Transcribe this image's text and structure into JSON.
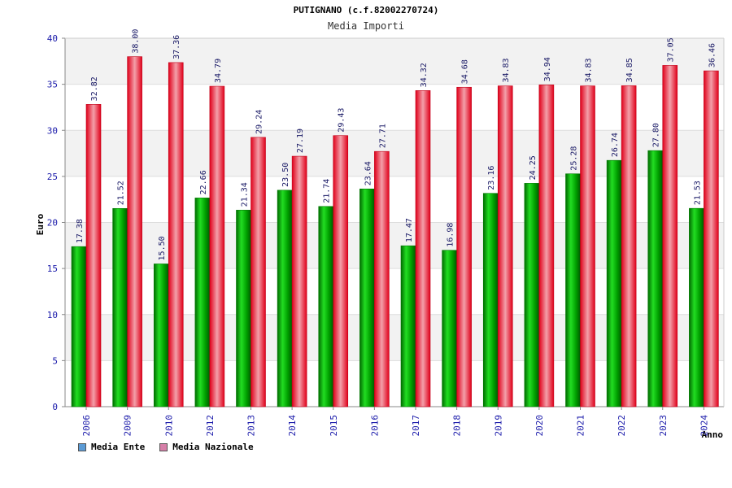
{
  "chart_data": {
    "type": "bar",
    "title": "PUTIGNANO (c.f.82002270724)",
    "subtitle": "Media Importi",
    "xlabel": "Anno",
    "ylabel": "Euro",
    "ylim": [
      0,
      40
    ],
    "yticks": [
      0,
      5,
      10,
      15,
      20,
      25,
      30,
      35,
      40
    ],
    "grid": true,
    "legend_position": "bottom-left",
    "categories": [
      "2006",
      "2009",
      "2010",
      "2012",
      "2013",
      "2014",
      "2015",
      "2016",
      "2017",
      "2018",
      "2019",
      "2020",
      "2021",
      "2022",
      "2023",
      "2024"
    ],
    "series": [
      {
        "name": "Media Ente",
        "color": "#00aa00",
        "legend_color": "#5b9bd5",
        "values": [
          17.38,
          21.52,
          15.5,
          22.66,
          21.34,
          23.5,
          21.74,
          23.64,
          17.47,
          16.98,
          23.16,
          24.25,
          25.28,
          26.74,
          27.8,
          21.53
        ],
        "labels": [
          "17.38",
          "21.52",
          "15.50",
          "22.66",
          "21.34",
          "23.50",
          "21.74",
          "23.64",
          "17.47",
          "16.98",
          "23.16",
          "24.25",
          "25.28",
          "26.74",
          "27.80",
          "21.53"
        ]
      },
      {
        "name": "Media Nazionale",
        "color": "#e8001c",
        "legend_color": "#d67fa8",
        "values": [
          32.82,
          38.0,
          37.36,
          34.79,
          29.24,
          27.19,
          29.43,
          27.71,
          34.32,
          34.68,
          34.83,
          34.94,
          34.83,
          34.85,
          37.05,
          36.46
        ],
        "labels": [
          "32.82",
          "38.00",
          "37.36",
          "34.79",
          "29.24",
          "27.19",
          "29.43",
          "27.71",
          "34.32",
          "34.68",
          "34.83",
          "34.94",
          "34.83",
          "34.85",
          "37.05",
          "36.46"
        ]
      }
    ]
  }
}
